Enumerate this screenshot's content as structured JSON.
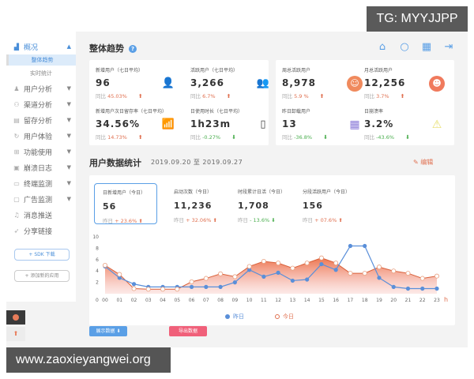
{
  "watermarks": {
    "top": "TG: MYYJJPP",
    "bottom": "www.zaoxieyangwei.org"
  },
  "sidebar": {
    "items": [
      {
        "label": "概况",
        "icon": "chart-icon",
        "arrow": "▲",
        "active": true
      },
      {
        "label": "用户分析",
        "icon": "users-icon",
        "arrow": "▼"
      },
      {
        "label": "渠道分析",
        "icon": "channel-icon",
        "arrow": "▼"
      },
      {
        "label": "留存分析",
        "icon": "retention-icon",
        "arrow": "▼"
      },
      {
        "label": "用户体验",
        "icon": "experience-icon",
        "arrow": "▼"
      },
      {
        "label": "功能使用",
        "icon": "grid-icon",
        "arrow": "▼"
      },
      {
        "label": "崩溃日志",
        "icon": "log-icon",
        "arrow": "▼"
      },
      {
        "label": "终端监测",
        "icon": "monitor-icon",
        "arrow": "▼"
      },
      {
        "label": "广告监测",
        "icon": "ad-icon",
        "arrow": "▼"
      },
      {
        "label": "消息推送",
        "icon": "bell-icon"
      },
      {
        "label": "分享链接",
        "icon": "share-icon"
      }
    ],
    "subitems": [
      {
        "label": "整体趋势",
        "active": true
      },
      {
        "label": "实时统计"
      }
    ],
    "buttons": {
      "sdk": "+ SDK 下载",
      "add_app": "+ 添加新的应用"
    }
  },
  "overview": {
    "title": "整体趋势",
    "help": "?",
    "toolbar_icons": [
      "home-icon",
      "search-icon",
      "calendar-icon",
      "logout-icon"
    ],
    "left_card": [
      {
        "label": "新增用户（七日平均）",
        "value": "96",
        "cmp_label": "同比",
        "pct": "45.03%",
        "dir": "up",
        "icon": "add-user-icon",
        "icon_color": "#5a9fe6"
      },
      {
        "label": "活跃用户（七日平均）",
        "value": "3,266",
        "cmp_label": "同比",
        "pct": "6.7%",
        "dir": "up",
        "icon": "group-icon",
        "icon_color": "#6ac8ea"
      },
      {
        "label": "新增用户次日留存率（七日平均）",
        "value": "34.56%",
        "cmp_label": "同比",
        "pct": "14.73%",
        "dir": "up",
        "icon": "growth-chart-icon",
        "icon_color": "#e8607a"
      },
      {
        "label": "日使用时长（七日平均）",
        "value": "1h23m",
        "cmp_label": "同比",
        "pct": "-0.27%",
        "dir": "down",
        "icon": "phone-icon",
        "icon_color": "#444444"
      }
    ],
    "right_card": [
      {
        "label": "周总活跃用户",
        "value": "8,978",
        "cmp_label": "同比",
        "pct": "5.9 %",
        "dir": "up",
        "icon": "smile-icon",
        "icon_color": "#f08a5d"
      },
      {
        "label": "月总活跃用户",
        "value": "12,256",
        "cmp_label": "同比",
        "pct": "3.7%",
        "dir": "up",
        "icon": "laugh-icon",
        "icon_color": "#f07a5d"
      },
      {
        "label": "昨日卸载用户",
        "value": "13",
        "cmp_label": "同比",
        "pct": "-36.8%",
        "dir": "down",
        "icon": "calendar-grid-icon",
        "icon_color": "#8a7ad8"
      },
      {
        "label": "日崩溃率",
        "value": "3.2%",
        "cmp_label": "同比",
        "pct": "-43.6%",
        "dir": "down",
        "icon": "warning-icon",
        "icon_color": "#e8e070"
      }
    ]
  },
  "stats": {
    "title": "用户数据统计",
    "date_range": "2019.09.20 至 2019.09.27",
    "edit": "编辑",
    "cards": [
      {
        "label": "日新增用户（今日）",
        "value": "56",
        "cmp_label": "昨日",
        "pct": "+ 23.6%",
        "dir": "up",
        "selected": true
      },
      {
        "label": "启动次数（今日）",
        "value": "11,236",
        "cmp_label": "昨日",
        "pct": "+ 32.06%",
        "dir": "up"
      },
      {
        "label": "时段累计日活（今日）",
        "value": "1,708",
        "cmp_label": "昨日",
        "pct": "- 13.6%",
        "dir": "down"
      },
      {
        "label": "分段活跃用户（今日）",
        "value": "156",
        "cmp_label": "昨日",
        "pct": "+ 07.6%",
        "dir": "up"
      }
    ],
    "legend": {
      "yesterday": "昨日",
      "today": "今日"
    },
    "buttons": {
      "show": "展示数据 ⬇",
      "export": "导出数据"
    }
  },
  "chart_data": {
    "type": "line",
    "title": "",
    "xlabel": "h",
    "ylabel": "",
    "x": [
      "00",
      "01",
      "02",
      "03",
      "04",
      "05",
      "06",
      "07",
      "08",
      "09",
      "10",
      "11",
      "12",
      "13",
      "14",
      "15",
      "16",
      "17",
      "18",
      "19",
      "20",
      "21",
      "22",
      "23"
    ],
    "yticks": [
      0,
      2,
      4,
      6,
      8,
      10
    ],
    "ylim": [
      0,
      10
    ],
    "series": [
      {
        "name": "昨日",
        "color": "#5a8fd9",
        "style": "line-filled-dots",
        "values": [
          4.8,
          2.8,
          1.7,
          1.2,
          1.2,
          1.2,
          1.2,
          1.2,
          1.2,
          2.0,
          4.2,
          3.0,
          3.7,
          2.3,
          2.5,
          5.2,
          4.2,
          8.4,
          8.4,
          2.8,
          1.2,
          0.9,
          0.9,
          0.9
        ]
      },
      {
        "name": "今日",
        "color": "#e8704a",
        "style": "area-hollow-dots",
        "values": [
          5.0,
          3.4,
          0.9,
          0.8,
          0.8,
          0.8,
          2.1,
          2.7,
          3.5,
          3.0,
          4.8,
          5.7,
          5.4,
          4.5,
          5.4,
          6.3,
          5.4,
          3.6,
          3.6,
          4.7,
          4.0,
          3.6,
          2.7,
          3.1
        ]
      }
    ],
    "legend_position": "bottom",
    "grid": false
  }
}
